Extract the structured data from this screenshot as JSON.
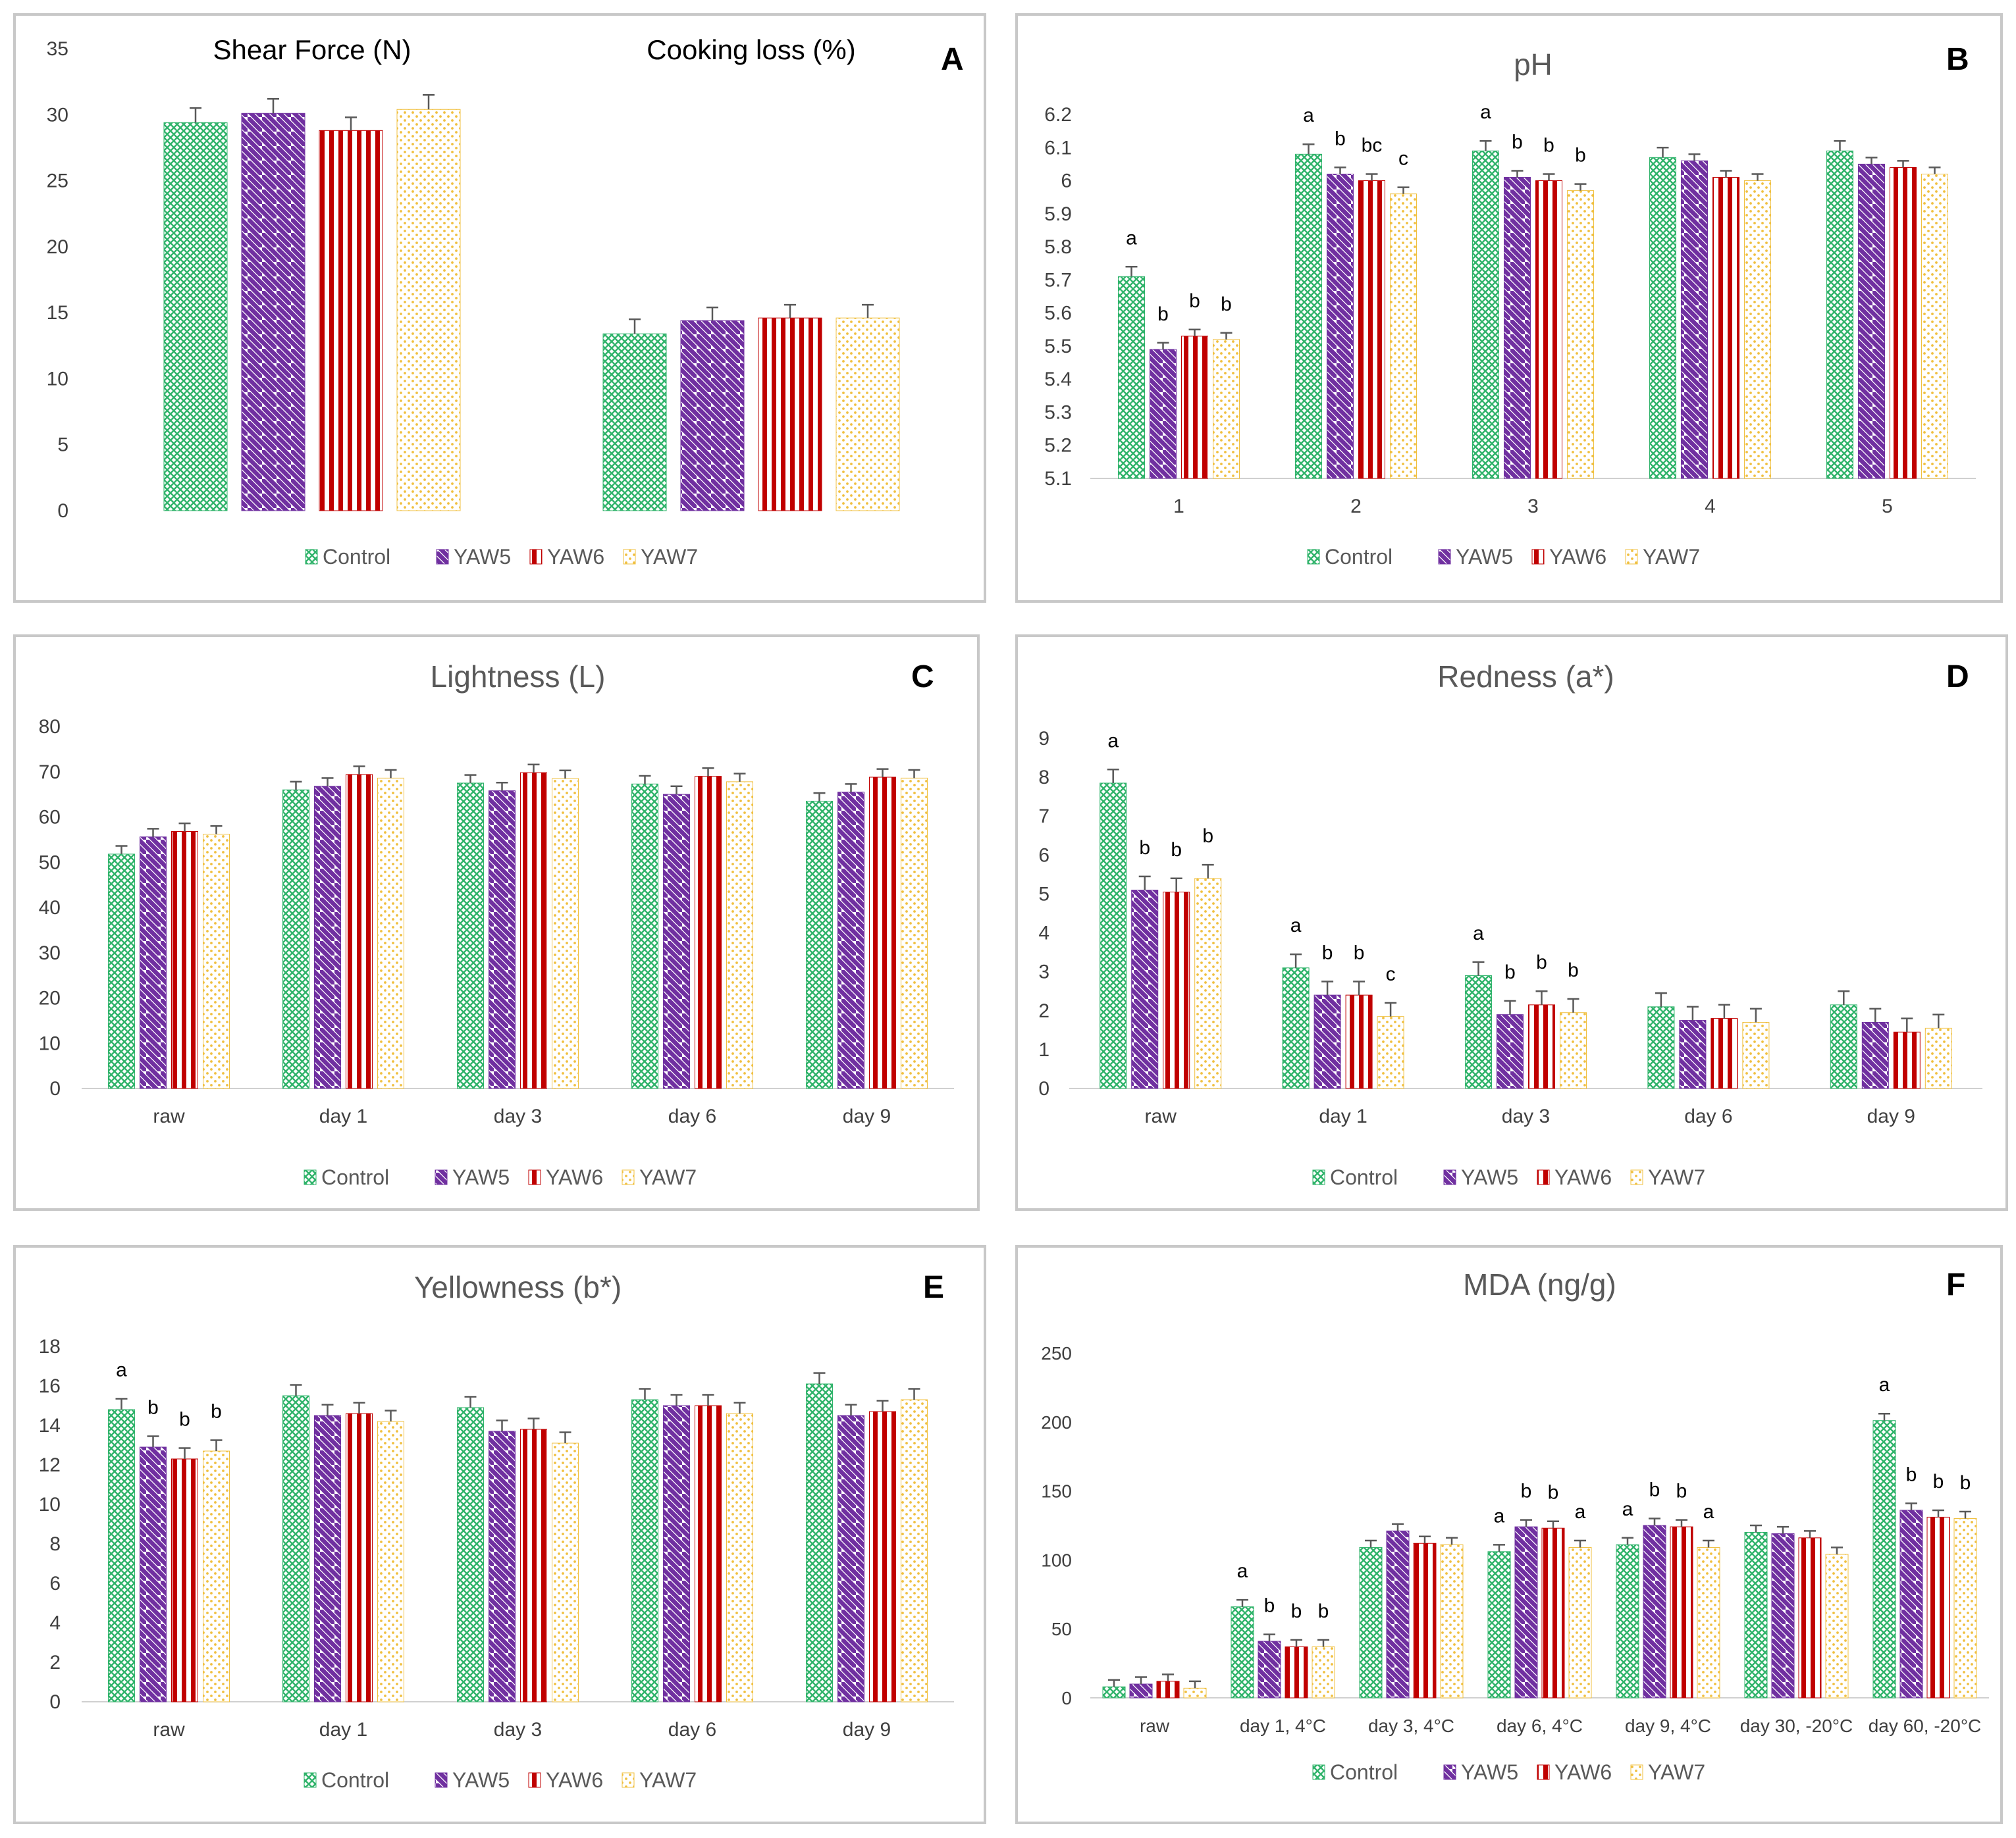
{
  "colors": {
    "control": "#2fb36a",
    "yaw5": "#7030a0",
    "yaw6": "#c00000",
    "yaw7": "#f0c040"
  },
  "legend": [
    "Control",
    "YAW5",
    "YAW6",
    "YAW7"
  ],
  "chart_data": [
    {
      "id": "A",
      "type": "bar",
      "letter": "A",
      "group_titles": [
        "Shear Force (N)",
        "Cooking loss (%)"
      ],
      "categories": [
        "Shear Force (N)",
        "Cooking loss (%)"
      ],
      "ylim": [
        0,
        35
      ],
      "yticks": [
        0,
        5,
        10,
        15,
        20,
        25,
        30,
        35
      ],
      "series": [
        {
          "name": "Control",
          "values": [
            29.4,
            13.4
          ],
          "errors": [
            1.1,
            1.1
          ]
        },
        {
          "name": "YAW5",
          "values": [
            30.1,
            14.4
          ],
          "errors": [
            1.1,
            1.0
          ]
        },
        {
          "name": "YAW6",
          "values": [
            28.8,
            14.6
          ],
          "errors": [
            1.0,
            1.0
          ]
        },
        {
          "name": "YAW7",
          "values": [
            30.4,
            14.6
          ],
          "errors": [
            1.1,
            1.0
          ]
        }
      ]
    },
    {
      "id": "B",
      "type": "bar",
      "letter": "B",
      "title": "pH",
      "categories": [
        "1",
        "2",
        "3",
        "4",
        "5"
      ],
      "ylim": [
        5.1,
        6.2
      ],
      "yticks": [
        5.1,
        5.2,
        5.3,
        5.4,
        5.5,
        5.6,
        5.7,
        5.8,
        5.9,
        6,
        6.1,
        6.2
      ],
      "series": [
        {
          "name": "Control",
          "values": [
            5.71,
            6.08,
            6.09,
            6.07,
            6.09
          ],
          "errors": [
            0.03,
            0.03,
            0.03,
            0.03,
            0.03
          ],
          "labels": [
            "a",
            "a",
            "a",
            "",
            ""
          ]
        },
        {
          "name": "YAW5",
          "values": [
            5.49,
            6.02,
            6.01,
            6.06,
            6.05
          ],
          "errors": [
            0.02,
            0.02,
            0.02,
            0.02,
            0.02
          ],
          "labels": [
            "b",
            "b",
            "b",
            "",
            ""
          ]
        },
        {
          "name": "YAW6",
          "values": [
            5.53,
            6.0,
            6.0,
            6.01,
            6.04
          ],
          "errors": [
            0.02,
            0.02,
            0.02,
            0.02,
            0.02
          ],
          "labels": [
            "b",
            "bc",
            "b",
            "",
            ""
          ]
        },
        {
          "name": "YAW7",
          "values": [
            5.52,
            5.96,
            5.97,
            6.0,
            6.02
          ],
          "errors": [
            0.02,
            0.02,
            0.02,
            0.02,
            0.02
          ],
          "labels": [
            "b",
            "c",
            "b",
            "",
            ""
          ]
        }
      ]
    },
    {
      "id": "C",
      "type": "bar",
      "letter": "C",
      "title": "Lightness (L)",
      "categories": [
        "raw",
        "day 1",
        "day 3",
        "day 6",
        "day 9"
      ],
      "ylim": [
        0,
        80
      ],
      "yticks": [
        0,
        10,
        20,
        30,
        40,
        50,
        60,
        70,
        80
      ],
      "series": [
        {
          "name": "Control",
          "values": [
            51.8,
            66,
            67.5,
            67.3,
            63.5
          ],
          "errors": [
            1.8,
            1.8,
            1.8,
            1.8,
            1.8
          ]
        },
        {
          "name": "YAW5",
          "values": [
            55.6,
            66.8,
            65.8,
            65,
            65.5
          ],
          "errors": [
            1.8,
            1.8,
            1.8,
            1.8,
            1.8
          ]
        },
        {
          "name": "YAW6",
          "values": [
            56.8,
            69.4,
            69.8,
            69,
            68.8
          ],
          "errors": [
            1.8,
            1.8,
            1.8,
            1.8,
            1.8
          ]
        },
        {
          "name": "YAW7",
          "values": [
            56.2,
            68.6,
            68.5,
            67.8,
            68.6
          ],
          "errors": [
            1.8,
            1.8,
            1.8,
            1.8,
            1.8
          ]
        }
      ]
    },
    {
      "id": "D",
      "type": "bar",
      "letter": "D",
      "title": "Redness (a*)",
      "categories": [
        "raw",
        "day 1",
        "day 3",
        "day 6",
        "day 9"
      ],
      "ylim": [
        0,
        9
      ],
      "yticks": [
        0,
        1,
        2,
        3,
        4,
        5,
        6,
        7,
        8,
        9
      ],
      "series": [
        {
          "name": "Control",
          "values": [
            7.85,
            3.1,
            2.9,
            2.1,
            2.15
          ],
          "errors": [
            0.35,
            0.35,
            0.35,
            0.35,
            0.35
          ],
          "labels": [
            "a",
            "a",
            "a",
            "",
            ""
          ]
        },
        {
          "name": "YAW5",
          "values": [
            5.1,
            2.4,
            1.9,
            1.75,
            1.7
          ],
          "errors": [
            0.35,
            0.35,
            0.35,
            0.35,
            0.35
          ],
          "labels": [
            "b",
            "b",
            "b",
            "",
            ""
          ]
        },
        {
          "name": "YAW6",
          "values": [
            5.05,
            2.4,
            2.15,
            1.8,
            1.45
          ],
          "errors": [
            0.35,
            0.35,
            0.35,
            0.35,
            0.35
          ],
          "labels": [
            "b",
            "b",
            "b",
            "",
            ""
          ]
        },
        {
          "name": "YAW7",
          "values": [
            5.4,
            1.85,
            1.95,
            1.7,
            1.55
          ],
          "errors": [
            0.35,
            0.35,
            0.35,
            0.35,
            0.35
          ],
          "labels": [
            "b",
            "c",
            "b",
            "",
            ""
          ]
        }
      ]
    },
    {
      "id": "E",
      "type": "bar",
      "letter": "E",
      "title": "Yellowness (b*)",
      "categories": [
        "raw",
        "day 1",
        "day 3",
        "day 6",
        "day 9"
      ],
      "ylim": [
        0,
        18
      ],
      "yticks": [
        0,
        2,
        4,
        6,
        8,
        10,
        12,
        14,
        16,
        18
      ],
      "series": [
        {
          "name": "Control",
          "values": [
            14.8,
            15.5,
            14.9,
            15.3,
            16.1
          ],
          "errors": [
            0.55,
            0.55,
            0.55,
            0.55,
            0.55
          ],
          "labels": [
            "a",
            "",
            "",
            "",
            ""
          ]
        },
        {
          "name": "YAW5",
          "values": [
            12.9,
            14.5,
            13.7,
            15,
            14.5
          ],
          "errors": [
            0.55,
            0.55,
            0.55,
            0.55,
            0.55
          ],
          "labels": [
            "b",
            "",
            "",
            "",
            ""
          ]
        },
        {
          "name": "YAW6",
          "values": [
            12.3,
            14.6,
            13.8,
            15,
            14.7
          ],
          "errors": [
            0.55,
            0.55,
            0.55,
            0.55,
            0.55
          ],
          "labels": [
            "b",
            "",
            "",
            "",
            ""
          ]
        },
        {
          "name": "YAW7",
          "values": [
            12.7,
            14.2,
            13.1,
            14.6,
            15.3
          ],
          "errors": [
            0.55,
            0.55,
            0.55,
            0.55,
            0.55
          ],
          "labels": [
            "b",
            "",
            "",
            "",
            ""
          ]
        }
      ]
    },
    {
      "id": "F",
      "type": "bar",
      "letter": "F",
      "title": "MDA (ng/g)",
      "categories": [
        "raw",
        "day 1,  4°C",
        "day 3, 4°C",
        "day 6, 4°C",
        "day 9, 4°C",
        "day 30, -20°C",
        "day 60, -20°C"
      ],
      "ylim": [
        0,
        250
      ],
      "yticks": [
        0,
        50,
        100,
        150,
        200,
        250
      ],
      "series": [
        {
          "name": "Control",
          "values": [
            8,
            66,
            109,
            106,
            111,
            120,
            201
          ],
          "errors": [
            5,
            5,
            5,
            5,
            5,
            5,
            5
          ],
          "labels": [
            "",
            "a",
            "",
            "a",
            "a",
            "",
            "a"
          ]
        },
        {
          "name": "YAW5",
          "values": [
            10,
            41,
            121,
            124,
            125,
            119,
            136
          ],
          "errors": [
            5,
            5,
            5,
            5,
            5,
            5,
            5
          ],
          "labels": [
            "",
            "b",
            "",
            "b",
            "b",
            "",
            "b"
          ]
        },
        {
          "name": "YAW6",
          "values": [
            12,
            37,
            112,
            123,
            124,
            116,
            131
          ],
          "errors": [
            5,
            5,
            5,
            5,
            5,
            5,
            5
          ],
          "labels": [
            "",
            "b",
            "",
            "b",
            "b",
            "",
            "b"
          ]
        },
        {
          "name": "YAW7",
          "values": [
            7,
            37,
            111,
            109,
            109,
            104,
            130
          ],
          "errors": [
            5,
            5,
            5,
            5,
            5,
            5,
            5
          ],
          "labels": [
            "",
            "b",
            "",
            "a",
            "a",
            "",
            "b"
          ]
        }
      ]
    }
  ]
}
